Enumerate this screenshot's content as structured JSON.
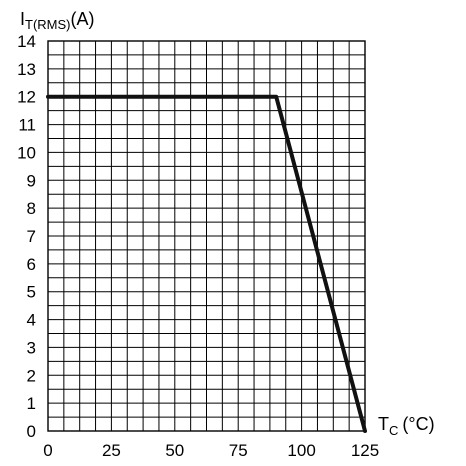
{
  "chart_data": {
    "type": "line",
    "ylabel_main": "I",
    "ylabel_sub": "T(RMS)",
    "ylabel_unit": "(A)",
    "xlabel_main": "T",
    "xlabel_sub": "C",
    "xlabel_unit": "(°C)",
    "xlim": [
      0,
      125
    ],
    "ylim": [
      0,
      14
    ],
    "x_ticks": [
      0,
      25,
      50,
      75,
      100,
      125
    ],
    "y_ticks": [
      0,
      1,
      2,
      3,
      4,
      5,
      6,
      7,
      8,
      9,
      10,
      11,
      12,
      13,
      14
    ],
    "grid": true,
    "x_grid_step": 6.25,
    "y_grid_step": 0.5,
    "series": [
      {
        "x": [
          0,
          90,
          125
        ],
        "y": [
          12,
          12,
          0
        ]
      }
    ]
  }
}
